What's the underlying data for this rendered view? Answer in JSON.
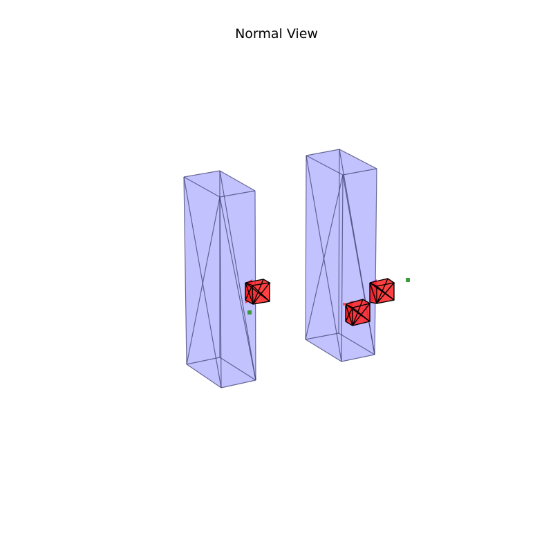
{
  "title": "Normal View",
  "colors": {
    "background": "#ffffff",
    "box_fill": "#8080ff",
    "box_edge": "#404070",
    "cube_fill": "#ff2020",
    "cube_edge": "#000000",
    "marker": "#3c9a3c"
  },
  "objects": {
    "tall_boxes": [
      {
        "name": "left-tall-box"
      },
      {
        "name": "right-tall-box"
      }
    ],
    "small_cubes": [
      {
        "name": "left-red-cube"
      },
      {
        "name": "right-lower-red-cube"
      },
      {
        "name": "right-upper-red-cube"
      }
    ],
    "markers": [
      {
        "name": "left-green-marker"
      },
      {
        "name": "right-green-marker"
      }
    ]
  }
}
